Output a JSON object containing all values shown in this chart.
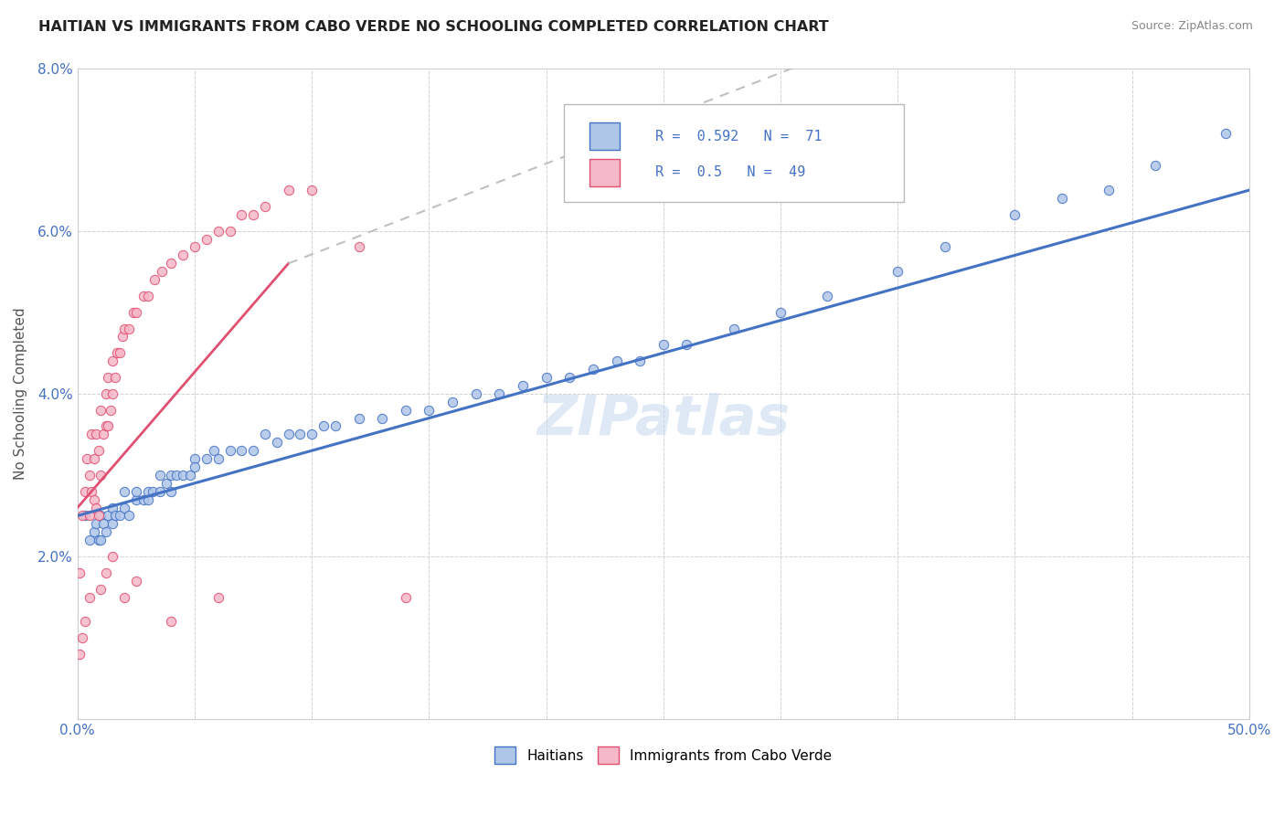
{
  "title": "HAITIAN VS IMMIGRANTS FROM CABO VERDE NO SCHOOLING COMPLETED CORRELATION CHART",
  "source": "Source: ZipAtlas.com",
  "ylabel_label": "No Schooling Completed",
  "xmin": 0.0,
  "xmax": 0.5,
  "ymin": 0.0,
  "ymax": 0.08,
  "xticks": [
    0.0,
    0.05,
    0.1,
    0.15,
    0.2,
    0.25,
    0.3,
    0.35,
    0.4,
    0.45,
    0.5
  ],
  "yticks": [
    0.0,
    0.02,
    0.04,
    0.06,
    0.08
  ],
  "r_blue": 0.592,
  "n_blue": 71,
  "r_pink": 0.5,
  "n_pink": 49,
  "blue_color": "#aec6e8",
  "pink_color": "#f5b8c8",
  "blue_line_color": "#4472c4",
  "pink_line_color": "#e05070",
  "watermark": "ZIPatlas",
  "legend_label_blue": "Haitians",
  "legend_label_pink": "Immigrants from Cabo Verde",
  "blue_scatter_x": [
    0.003,
    0.005,
    0.007,
    0.008,
    0.009,
    0.01,
    0.01,
    0.011,
    0.012,
    0.013,
    0.015,
    0.015,
    0.016,
    0.018,
    0.02,
    0.02,
    0.022,
    0.025,
    0.025,
    0.028,
    0.03,
    0.03,
    0.032,
    0.035,
    0.035,
    0.038,
    0.04,
    0.04,
    0.042,
    0.045,
    0.048,
    0.05,
    0.05,
    0.055,
    0.058,
    0.06,
    0.065,
    0.07,
    0.075,
    0.08,
    0.085,
    0.09,
    0.095,
    0.1,
    0.105,
    0.11,
    0.12,
    0.13,
    0.14,
    0.15,
    0.16,
    0.17,
    0.18,
    0.19,
    0.2,
    0.21,
    0.22,
    0.23,
    0.24,
    0.25,
    0.26,
    0.28,
    0.3,
    0.32,
    0.35,
    0.37,
    0.4,
    0.42,
    0.44,
    0.46,
    0.49
  ],
  "blue_scatter_y": [
    0.025,
    0.022,
    0.023,
    0.024,
    0.022,
    0.022,
    0.025,
    0.024,
    0.023,
    0.025,
    0.024,
    0.026,
    0.025,
    0.025,
    0.026,
    0.028,
    0.025,
    0.027,
    0.028,
    0.027,
    0.027,
    0.028,
    0.028,
    0.028,
    0.03,
    0.029,
    0.03,
    0.028,
    0.03,
    0.03,
    0.03,
    0.032,
    0.031,
    0.032,
    0.033,
    0.032,
    0.033,
    0.033,
    0.033,
    0.035,
    0.034,
    0.035,
    0.035,
    0.035,
    0.036,
    0.036,
    0.037,
    0.037,
    0.038,
    0.038,
    0.039,
    0.04,
    0.04,
    0.041,
    0.042,
    0.042,
    0.043,
    0.044,
    0.044,
    0.046,
    0.046,
    0.048,
    0.05,
    0.052,
    0.055,
    0.058,
    0.062,
    0.064,
    0.065,
    0.068,
    0.072
  ],
  "pink_scatter_x": [
    0.001,
    0.002,
    0.003,
    0.004,
    0.005,
    0.005,
    0.006,
    0.006,
    0.007,
    0.007,
    0.008,
    0.008,
    0.009,
    0.009,
    0.01,
    0.01,
    0.011,
    0.012,
    0.012,
    0.013,
    0.013,
    0.014,
    0.015,
    0.015,
    0.016,
    0.017,
    0.018,
    0.019,
    0.02,
    0.022,
    0.024,
    0.025,
    0.028,
    0.03,
    0.033,
    0.036,
    0.04,
    0.045,
    0.05,
    0.055,
    0.06,
    0.065,
    0.07,
    0.075,
    0.08,
    0.09,
    0.1,
    0.12,
    0.14
  ],
  "pink_scatter_y": [
    0.018,
    0.025,
    0.028,
    0.032,
    0.025,
    0.03,
    0.028,
    0.035,
    0.027,
    0.032,
    0.026,
    0.035,
    0.025,
    0.033,
    0.03,
    0.038,
    0.035,
    0.036,
    0.04,
    0.036,
    0.042,
    0.038,
    0.04,
    0.044,
    0.042,
    0.045,
    0.045,
    0.047,
    0.048,
    0.048,
    0.05,
    0.05,
    0.052,
    0.052,
    0.054,
    0.055,
    0.056,
    0.057,
    0.058,
    0.059,
    0.06,
    0.06,
    0.062,
    0.062,
    0.063,
    0.065,
    0.065,
    0.058,
    0.015
  ],
  "pink_extra_low_x": [
    0.001,
    0.002,
    0.003,
    0.005,
    0.01,
    0.012,
    0.015,
    0.02,
    0.025,
    0.04,
    0.06
  ],
  "pink_extra_low_y": [
    0.008,
    0.01,
    0.012,
    0.015,
    0.016,
    0.018,
    0.02,
    0.015,
    0.017,
    0.012,
    0.015
  ]
}
